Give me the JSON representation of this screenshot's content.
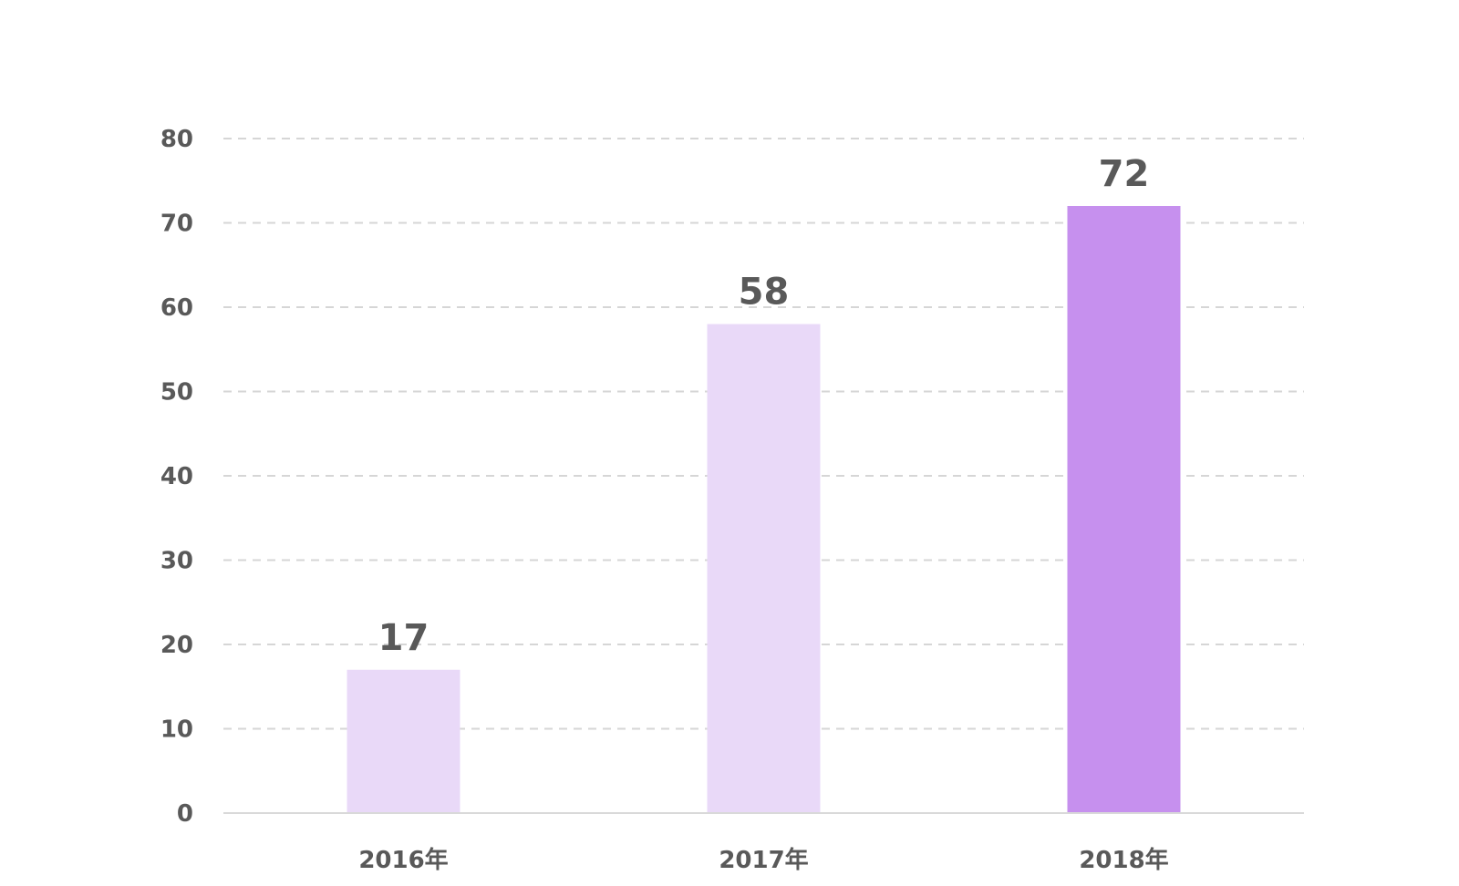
{
  "chart_data": {
    "type": "bar",
    "categories": [
      "2016年",
      "2017年",
      "2018年"
    ],
    "values": [
      17,
      58,
      72
    ],
    "data_labels": [
      "17",
      "58",
      "72"
    ],
    "y_ticks": [
      "0",
      "10",
      "20",
      "30",
      "40",
      "50",
      "60",
      "70",
      "80"
    ],
    "y_tick_values": [
      0,
      10,
      20,
      30,
      40,
      50,
      60,
      70,
      80
    ],
    "ylim": [
      0,
      80
    ],
    "grid": true,
    "grid_style": "dashed",
    "legend": "none",
    "title": "",
    "xlabel": "",
    "ylabel": ""
  },
  "colors": {
    "bar_light": "#e9d9f8",
    "bar_highlight": "#c690ee",
    "highlight_index": 2,
    "grid": "#d6d6d6",
    "axis": "#d9d9d9",
    "text": "#595959",
    "background": "#ffffff"
  }
}
